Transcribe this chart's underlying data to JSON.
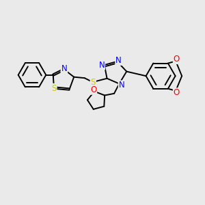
{
  "background_color": "#eaeaea",
  "atom_colors": {
    "S": "#cccc00",
    "N": "#0000ff",
    "O": "#ff0000",
    "C": "#000000"
  },
  "bond_color": "#000000",
  "bond_width": 1.4,
  "font_size_atoms": 8.5
}
